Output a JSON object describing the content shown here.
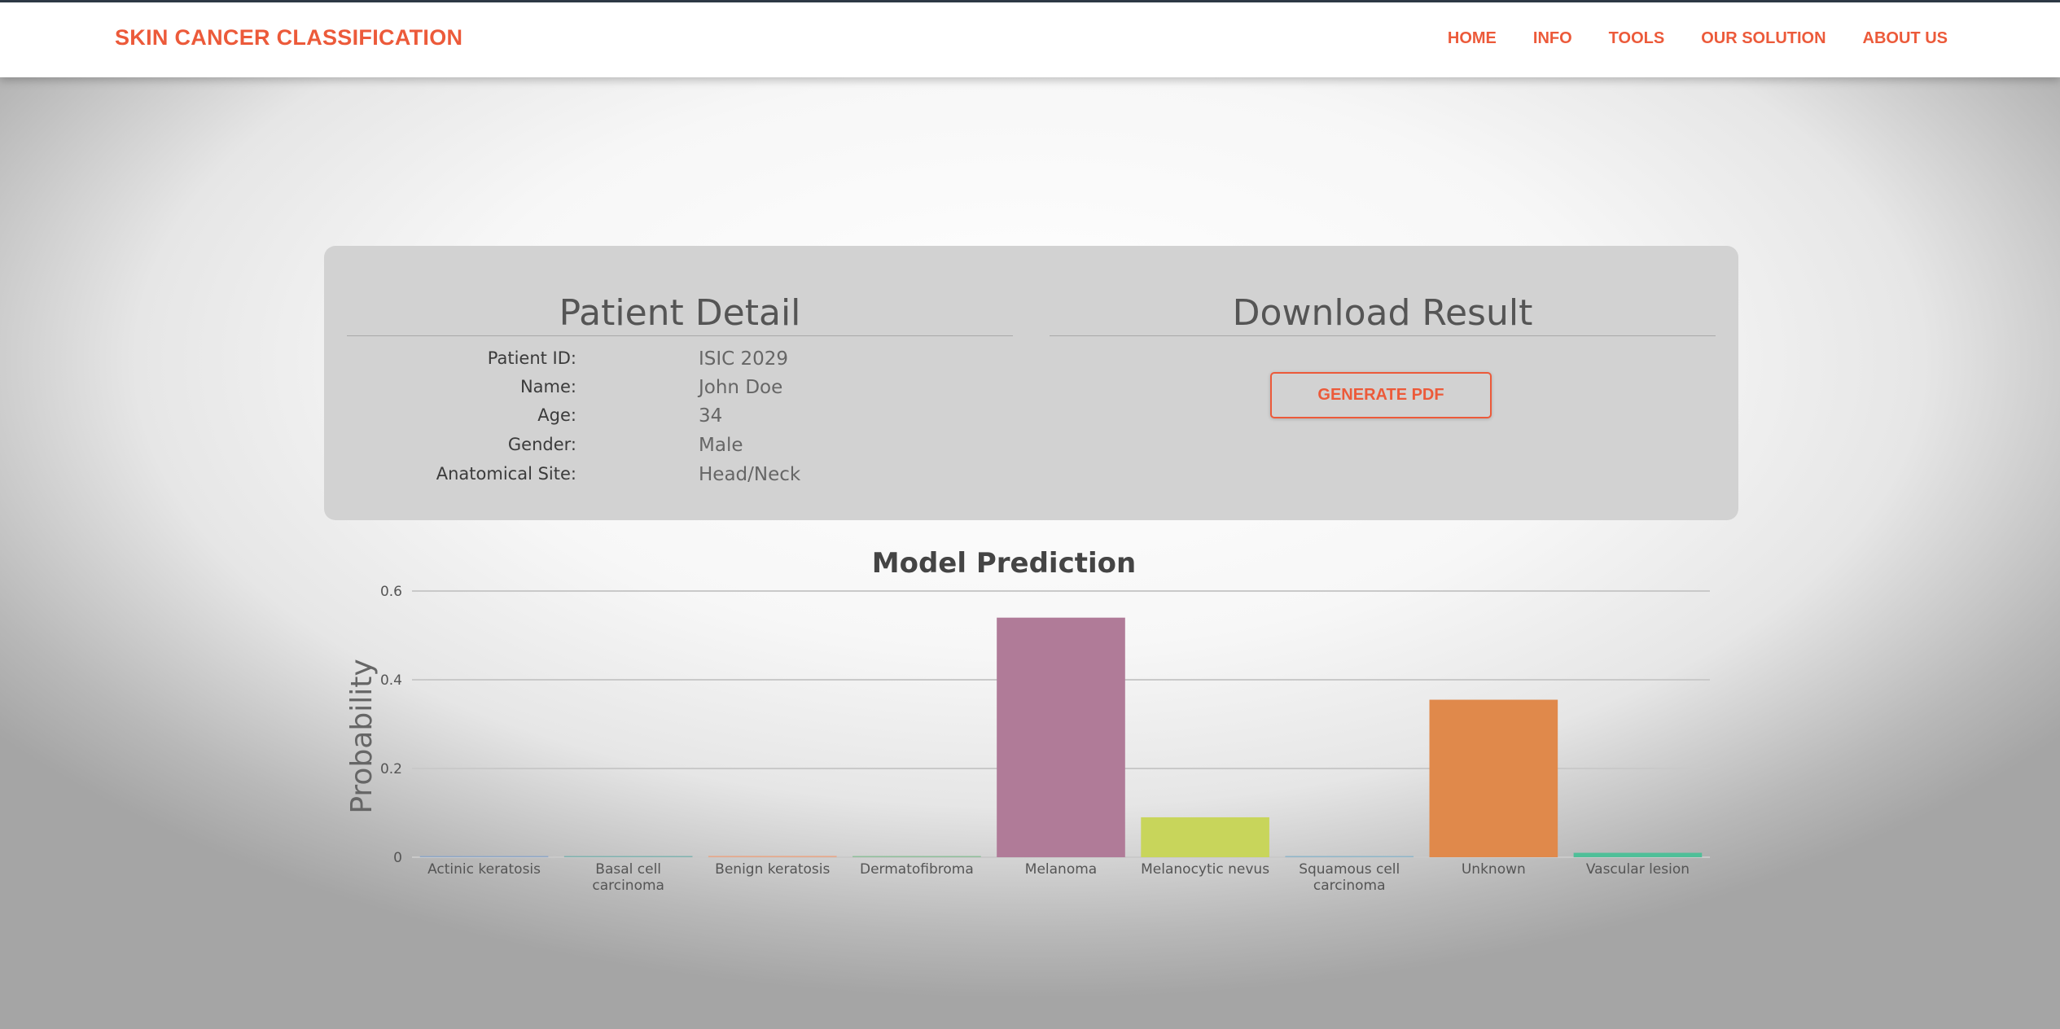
{
  "navbar": {
    "brand": "SKIN CANCER CLASSIFICATION",
    "links": [
      "HOME",
      "INFO",
      "TOOLS",
      "OUR SOLUTION",
      "ABOUT US"
    ]
  },
  "patient_detail": {
    "title": "Patient Detail",
    "rows": [
      {
        "label": "Patient ID:",
        "value": "ISIC 2029"
      },
      {
        "label": "Name:",
        "value": "John Doe"
      },
      {
        "label": "Age:",
        "value": "34"
      },
      {
        "label": "Gender:",
        "value": "Male"
      },
      {
        "label": "Anatomical Site:",
        "value": "Head/Neck"
      }
    ]
  },
  "download": {
    "title": "Download Result",
    "button_label": "GENERATE PDF"
  },
  "colors": {
    "accent": "#ec5a3a",
    "card_bg": "#d2d2d2"
  },
  "chart_data": {
    "type": "bar",
    "title": "Model Prediction",
    "xlabel": "",
    "ylabel": "Probability",
    "ylim": [
      0,
      0.6
    ],
    "yticks": [
      "0",
      "0.2",
      "0.4",
      "0.6"
    ],
    "grid": true,
    "categories": [
      "Actinic keratosis",
      "Basal cell carcinoma",
      "Benign keratosis",
      "Dermatofibroma",
      "Melanoma",
      "Melanocytic nevus",
      "Squamous cell carcinoma",
      "Unknown",
      "Vascular lesion"
    ],
    "category_lines": [
      [
        "Actinic keratosis"
      ],
      [
        "Basal cell",
        "carcinoma"
      ],
      [
        "Benign keratosis"
      ],
      [
        "Dermatofibroma"
      ],
      [
        "Melanoma"
      ],
      [
        "Melanocytic nevus"
      ],
      [
        "Squamous cell",
        "carcinoma"
      ],
      [
        "Unknown"
      ],
      [
        "Vascular lesion"
      ]
    ],
    "values": [
      0.0005,
      0.001,
      0.003,
      0.002,
      0.54,
      0.09,
      0.002,
      0.355,
      0.01
    ],
    "bar_colors": [
      "#8fa8c8",
      "#7fb3b0",
      "#e6a88a",
      "#8fbf9a",
      "#b07b98",
      "#c8d55b",
      "#8fb6c9",
      "#e0894b",
      "#4fbf98"
    ]
  }
}
